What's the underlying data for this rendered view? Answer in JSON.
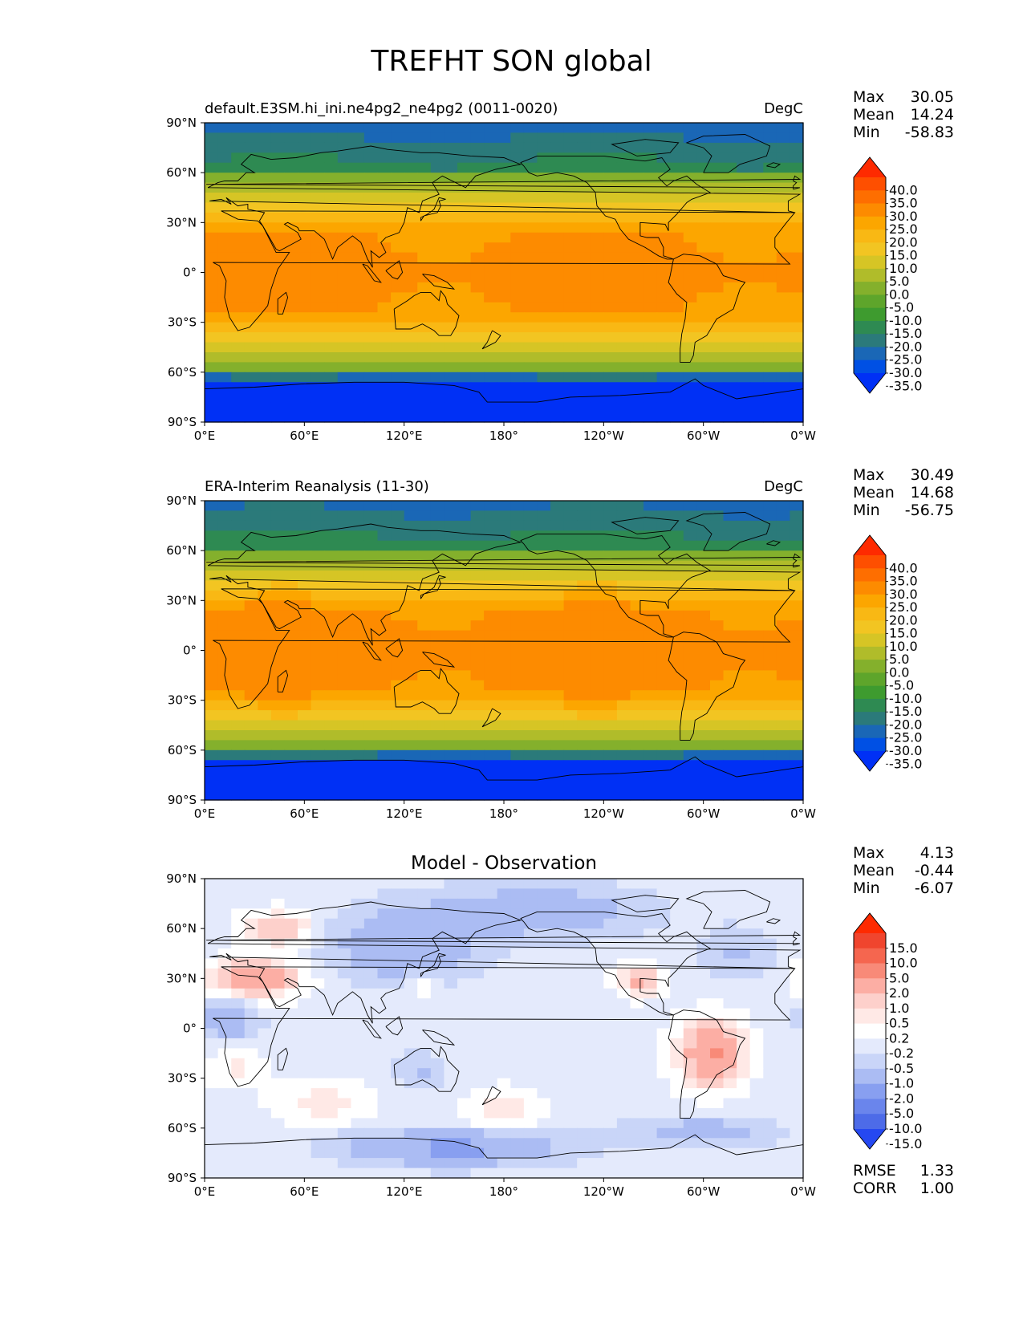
{
  "figure": {
    "title": "TREFHT SON global"
  },
  "axes": {
    "lat_ticks": [
      "90°N",
      "60°N",
      "30°N",
      "0°",
      "30°S",
      "60°S",
      "90°S"
    ],
    "lon_ticks": [
      "0°E",
      "60°E",
      "120°E",
      "180°",
      "120°W",
      "60°W",
      "0°W"
    ]
  },
  "panels": [
    {
      "id": "model",
      "title_left": "default.E3SM.hi_ini.ne4pg2_ne4pg2 (0011-0020)",
      "title_center": "",
      "title_right": "DegC",
      "stats": [
        {
          "label": "Max",
          "value": "30.05"
        },
        {
          "label": "Mean",
          "value": "14.24"
        },
        {
          "label": "Min",
          "value": "-58.83"
        }
      ],
      "colorbar": {
        "ticks": [
          "40.0",
          "35.0",
          "30.0",
          "25.0",
          "20.0",
          "15.0",
          "10.0",
          "5.0",
          "0.0",
          "-5.0",
          "-10.0",
          "-15.0",
          "-20.0",
          "-25.0",
          "-30.0",
          "-35.0"
        ],
        "colors": [
          "#fe2a00",
          "#fe4f00",
          "#fe6e00",
          "#fd8b00",
          "#fca600",
          "#f9b814",
          "#f2c522",
          "#d6c525",
          "#b0bc2a",
          "#84b02c",
          "#5ea52b",
          "#3e9b2f",
          "#2e8a52",
          "#2b7a7a",
          "#1a67b6",
          "#0050e4",
          "#0030f5"
        ]
      },
      "map_kind": "temperature",
      "field_params": {
        "equator_temp": 27,
        "pole_north": -28,
        "pole_south": -50
      }
    },
    {
      "id": "obs",
      "title_left": "ERA-Interim Reanalysis (11-30)",
      "title_center": "",
      "title_right": "DegC",
      "stats": [
        {
          "label": "Max",
          "value": "30.49"
        },
        {
          "label": "Mean",
          "value": "14.68"
        },
        {
          "label": "Min",
          "value": "-56.75"
        }
      ],
      "colorbar": {
        "ticks": [
          "40.0",
          "35.0",
          "30.0",
          "25.0",
          "20.0",
          "15.0",
          "10.0",
          "5.0",
          "0.0",
          "-5.0",
          "-10.0",
          "-15.0",
          "-20.0",
          "-25.0",
          "-30.0",
          "-35.0"
        ],
        "colors": [
          "#fe2a00",
          "#fe4f00",
          "#fe6e00",
          "#fd8b00",
          "#fca600",
          "#f9b814",
          "#f2c522",
          "#d6c525",
          "#b0bc2a",
          "#84b02c",
          "#5ea52b",
          "#3e9b2f",
          "#2e8a52",
          "#2b7a7a",
          "#1a67b6",
          "#0050e4",
          "#0030f5"
        ]
      },
      "map_kind": "temperature",
      "field_params": {
        "equator_temp": 27.5,
        "pole_north": -27,
        "pole_south": -49
      }
    },
    {
      "id": "diff",
      "title_left": "",
      "title_center": "Model - Observation",
      "title_right": "",
      "stats": [
        {
          "label": "Max",
          "value": "4.13"
        },
        {
          "label": "Mean",
          "value": "-0.44"
        },
        {
          "label": "Min",
          "value": "-6.07"
        }
      ],
      "extra_stats": [
        {
          "label": "RMSE",
          "value": "1.33"
        },
        {
          "label": "CORR",
          "value": "1.00"
        }
      ],
      "colorbar": {
        "ticks": [
          "15.0",
          "10.0",
          "5.0",
          "2.0",
          "1.0",
          "0.5",
          "0.2",
          "-0.2",
          "-0.5",
          "-1.0",
          "-2.0",
          "-5.0",
          "-10.0",
          "-15.0"
        ],
        "colors": [
          "#fe2a00",
          "#f0452e",
          "#f5664f",
          "#f88a78",
          "#fcaea4",
          "#fdd0cb",
          "#ffe9e6",
          "#ffffff",
          "#e4eafc",
          "#c9d5f8",
          "#abbcf3",
          "#889ff0",
          "#6a85ec",
          "#4d6be8",
          "#2548f1"
        ]
      },
      "map_kind": "difference"
    }
  ]
}
